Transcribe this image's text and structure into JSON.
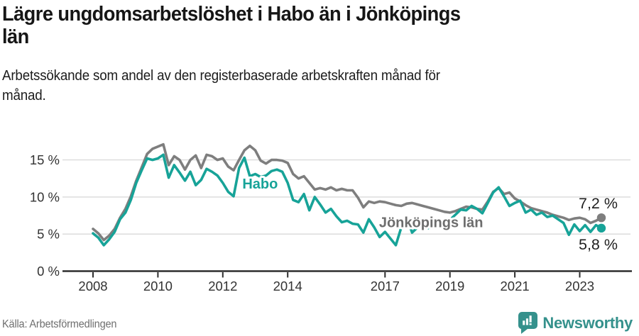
{
  "header": {
    "title": "Lägre ungdomsarbetslöshet i Habo än i Jönköpings län",
    "title_lines": [
      "Lägre ungdomsarbetslöshet i Habo än i Jönköpings",
      "län"
    ],
    "subtitle": "Arbetssökande som andel av den registerbaserade arbetskraften månad för månad.",
    "subtitle_lines": [
      "Arbetssökande som andel av den registerbaserade arbetskraften månad för",
      "månad."
    ]
  },
  "footer": {
    "source": "Källa: Arbetsförmedlingen",
    "brand": "Newsworthy"
  },
  "colors": {
    "habo_line": "#17a398",
    "lan_line": "#7e7e7e",
    "lan_label": "#6d6d6d",
    "grid": "#dadada",
    "axis": "#2e2e2e",
    "tick_text": "#333333",
    "end_label_text": "#1f1f1f",
    "title_text": "#161616",
    "source_text": "#6f6f6f",
    "logo": "#35918c",
    "background": "#ffffff"
  },
  "chart_data": {
    "type": "line",
    "title": "Lägre ungdomsarbetslöshet i Habo än i Jönköpings län",
    "subtitle": "Arbetssökande som andel av den registerbaserade arbetskraften månad för månad.",
    "unit": "%",
    "grid": "horizontal",
    "legend_position": "inline-labels",
    "xlim": [
      2007.9,
      2024.2
    ],
    "ylim": [
      0,
      18
    ],
    "x_start": 2008.0,
    "x_step_years": 0.16667,
    "x_ticks": [
      {
        "t": 2008,
        "label": "2008"
      },
      {
        "t": 2010,
        "label": "2010"
      },
      {
        "t": 2012,
        "label": "2012"
      },
      {
        "t": 2014,
        "label": "2014"
      },
      {
        "t": 2017,
        "label": "2017"
      },
      {
        "t": 2019,
        "label": "2019"
      },
      {
        "t": 2021,
        "label": "2021"
      },
      {
        "t": 2023,
        "label": "2023"
      }
    ],
    "y_ticks": [
      {
        "v": 0,
        "label": "0 %"
      },
      {
        "v": 5,
        "label": "5 %"
      },
      {
        "v": 10,
        "label": "10 %"
      },
      {
        "v": 15,
        "label": "15 %"
      }
    ],
    "series": [
      {
        "name": "Habo",
        "color": "#17a398",
        "label_color": "#17a398",
        "label_at": {
          "t": 2013.15,
          "v": 11.8
        },
        "end_label": "5,8 %",
        "end_label_position": "below",
        "values": [
          5.1,
          4.5,
          3.5,
          4.3,
          5.3,
          7.0,
          7.9,
          9.6,
          11.9,
          13.6,
          15.2,
          15.0,
          15.2,
          15.7,
          12.6,
          14.3,
          13.3,
          12.2,
          13.4,
          11.6,
          12.3,
          13.8,
          13.4,
          12.9,
          11.9,
          10.7,
          10.1,
          13.9,
          15.3,
          12.8,
          13.1,
          12.7,
          12.9,
          13.5,
          13.7,
          13.4,
          11.9,
          9.6,
          9.3,
          10.4,
          8.2,
          10.0,
          9.0,
          7.9,
          8.4,
          7.4,
          6.6,
          6.8,
          6.4,
          6.3,
          5.2,
          7.0,
          5.9,
          4.6,
          5.3,
          4.4,
          3.5,
          5.9,
          7.3,
          5.2,
          5.9,
          6.3,
          5.8,
          6.7,
          6.1,
          6.5,
          6.9,
          7.6,
          8.3,
          8.2,
          8.8,
          8.4,
          7.8,
          9.2,
          10.6,
          11.3,
          10.1,
          8.8,
          9.2,
          9.5,
          7.9,
          8.3,
          7.6,
          7.9,
          7.3,
          7.5,
          7.0,
          6.5,
          4.9,
          6.3,
          5.4,
          6.2,
          5.3,
          6.2,
          5.8
        ]
      },
      {
        "name": "Jönköpings län",
        "color": "#7e7e7e",
        "label_color": "#6d6d6d",
        "label_at": {
          "t": 2018.42,
          "v": 6.6
        },
        "end_label": "7,2 %",
        "end_label_position": "above",
        "values": [
          5.7,
          5.1,
          4.2,
          4.8,
          5.7,
          7.2,
          8.4,
          10.1,
          12.2,
          14.0,
          15.8,
          16.5,
          16.8,
          17.1,
          14.3,
          15.5,
          15.0,
          13.7,
          15.0,
          15.6,
          13.9,
          15.7,
          15.5,
          15.0,
          15.2,
          14.1,
          13.6,
          15.0,
          16.3,
          16.9,
          16.3,
          14.9,
          14.5,
          15.0,
          15.0,
          14.9,
          14.6,
          13.1,
          12.5,
          12.8,
          11.9,
          11.0,
          11.2,
          11.0,
          11.3,
          10.9,
          11.1,
          10.9,
          10.9,
          9.9,
          8.6,
          9.4,
          9.2,
          9.4,
          9.3,
          9.1,
          8.9,
          8.8,
          9.1,
          9.2,
          9.0,
          8.8,
          8.6,
          8.4,
          8.2,
          8.0,
          7.9,
          8.1,
          8.4,
          8.7,
          8.6,
          8.4,
          8.3,
          9.4,
          10.7,
          11.2,
          10.4,
          10.6,
          9.8,
          9.4,
          8.9,
          8.5,
          8.3,
          8.1,
          7.9,
          7.6,
          7.4,
          7.2,
          6.9,
          7.1,
          7.2,
          7.0,
          6.5,
          6.8,
          7.2
        ]
      }
    ]
  }
}
